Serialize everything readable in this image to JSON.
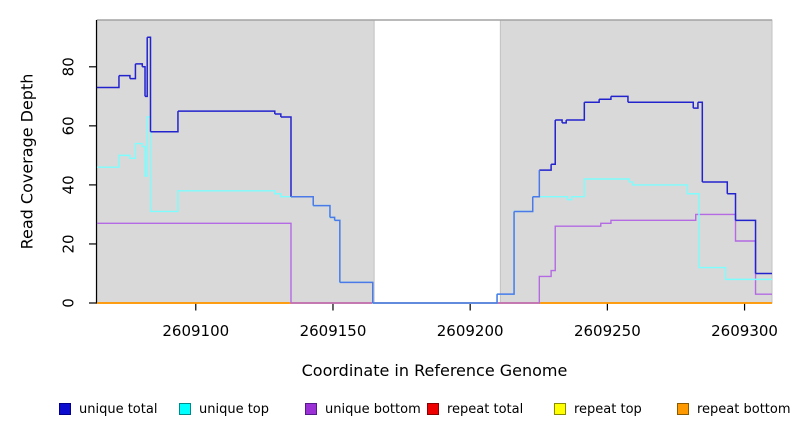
{
  "chart_data": {
    "type": "line",
    "subtype": "step-coverage",
    "title": "",
    "xlabel": "Coordinate in Reference Genome",
    "ylabel": "Read Coverage Depth",
    "xlim": [
      2609064,
      2609310
    ],
    "ylim": [
      0,
      90
    ],
    "xticks": [
      "2609100",
      "2609150",
      "2609200",
      "2609250",
      "2609300"
    ],
    "xtick_values": [
      2609100,
      2609150,
      2609200,
      2609250,
      2609300
    ],
    "yticks": [
      "0",
      "20",
      "40",
      "60",
      "80"
    ],
    "ytick_values": [
      0,
      20,
      40,
      60,
      80
    ],
    "grid": false,
    "panel": {
      "background": "#ffffff",
      "shaded_regions": [
        {
          "x0": 2609064,
          "x1": 2609165,
          "fill": "#d9d9d9",
          "edge": "#c2c2c2"
        },
        {
          "x0": 2609211,
          "x1": 2609310,
          "fill": "#d9d9d9",
          "edge": "#c2c2c2"
        }
      ],
      "top_border_color": "#a3a3a3",
      "axis_color": "#000000"
    },
    "series": [
      {
        "name": "repeat total",
        "color": "#e8000d",
        "points": [
          [
            2609064,
            0
          ]
        ]
      },
      {
        "name": "repeat top",
        "color": "#ffff00",
        "points": [
          [
            2609064,
            0
          ]
        ]
      },
      {
        "name": "repeat bottom",
        "color": "#ff9405",
        "points": [
          [
            2609064,
            0
          ]
        ]
      },
      {
        "name": "unique bottom",
        "color": "#b36ae2",
        "points": [
          [
            2609064,
            27
          ],
          [
            2609134.7,
            0
          ],
          [
            2609225.2,
            9
          ],
          [
            2609229.5,
            11
          ],
          [
            2609231,
            26
          ],
          [
            2609247.6,
            27
          ],
          [
            2609251.3,
            28
          ],
          [
            2609282.2,
            30
          ],
          [
            2609296.7,
            21
          ],
          [
            2609304,
            3
          ]
        ]
      },
      {
        "name": "unique top",
        "color": "#7dfdfd",
        "points": [
          [
            2609064,
            46
          ],
          [
            2609072,
            50
          ],
          [
            2609076,
            49
          ],
          [
            2609078,
            54
          ],
          [
            2609080.5,
            53
          ],
          [
            2609081.5,
            43
          ],
          [
            2609082.3,
            63
          ],
          [
            2609083.5,
            31
          ],
          [
            2609093.5,
            38
          ],
          [
            2609128.8,
            37
          ],
          [
            2609131,
            36
          ],
          [
            2609142.8,
            33
          ],
          [
            2609148.9,
            29
          ],
          [
            2609150.6,
            28
          ],
          [
            2609152.5,
            7
          ],
          [
            2609164.5,
            0
          ],
          [
            2609209.8,
            3
          ],
          [
            2609216,
            31
          ],
          [
            2609222.8,
            36
          ],
          [
            2609235.5,
            35
          ],
          [
            2609237,
            36
          ],
          [
            2609241.6,
            42
          ],
          [
            2609258,
            41
          ],
          [
            2609259.2,
            40
          ],
          [
            2609279.2,
            37
          ],
          [
            2609283.4,
            12
          ],
          [
            2609293.1,
            8
          ]
        ]
      },
      {
        "name": "unique total",
        "color": "#2323cd",
        "overlap_color": "#4b79e8",
        "overlaps_with": "unique top",
        "points": [
          [
            2609064,
            73
          ],
          [
            2609072,
            77
          ],
          [
            2609076,
            76
          ],
          [
            2609078,
            81
          ],
          [
            2609080.5,
            80
          ],
          [
            2609081.5,
            70
          ],
          [
            2609082.3,
            90
          ],
          [
            2609083.5,
            58
          ],
          [
            2609093.5,
            65
          ],
          [
            2609128.8,
            64
          ],
          [
            2609131,
            63
          ],
          [
            2609134.7,
            36
          ],
          [
            2609142.8,
            33
          ],
          [
            2609148.9,
            29
          ],
          [
            2609150.6,
            28
          ],
          [
            2609152.5,
            7
          ],
          [
            2609164.5,
            0
          ],
          [
            2609209.8,
            3
          ],
          [
            2609216,
            31
          ],
          [
            2609222.8,
            36
          ],
          [
            2609225.2,
            45
          ],
          [
            2609229.5,
            47
          ],
          [
            2609231,
            62
          ],
          [
            2609233.5,
            61
          ],
          [
            2609235,
            62
          ],
          [
            2609241.6,
            68
          ],
          [
            2609247,
            69
          ],
          [
            2609251.3,
            70
          ],
          [
            2609257.5,
            68
          ],
          [
            2609281.3,
            66
          ],
          [
            2609283,
            68
          ],
          [
            2609284.6,
            41
          ],
          [
            2609293.7,
            37
          ],
          [
            2609296.7,
            28
          ],
          [
            2609304,
            10
          ]
        ]
      }
    ],
    "legend": {
      "position": "bottom",
      "items": [
        {
          "label": "unique total",
          "fill": "#0d0dd0",
          "border": "#00008b"
        },
        {
          "label": "unique top",
          "fill": "#00ffff",
          "border": "#008b8b"
        },
        {
          "label": "unique bottom",
          "fill": "#9a30d6",
          "border": "#551a8b"
        },
        {
          "label": "repeat total",
          "fill": "#ee0000",
          "border": "#8b0000"
        },
        {
          "label": "repeat top",
          "fill": "#ffff00",
          "border": "#8b8b00"
        },
        {
          "label": "repeat bottom",
          "fill": "#ff9900",
          "border": "#8b5a00"
        }
      ]
    }
  }
}
